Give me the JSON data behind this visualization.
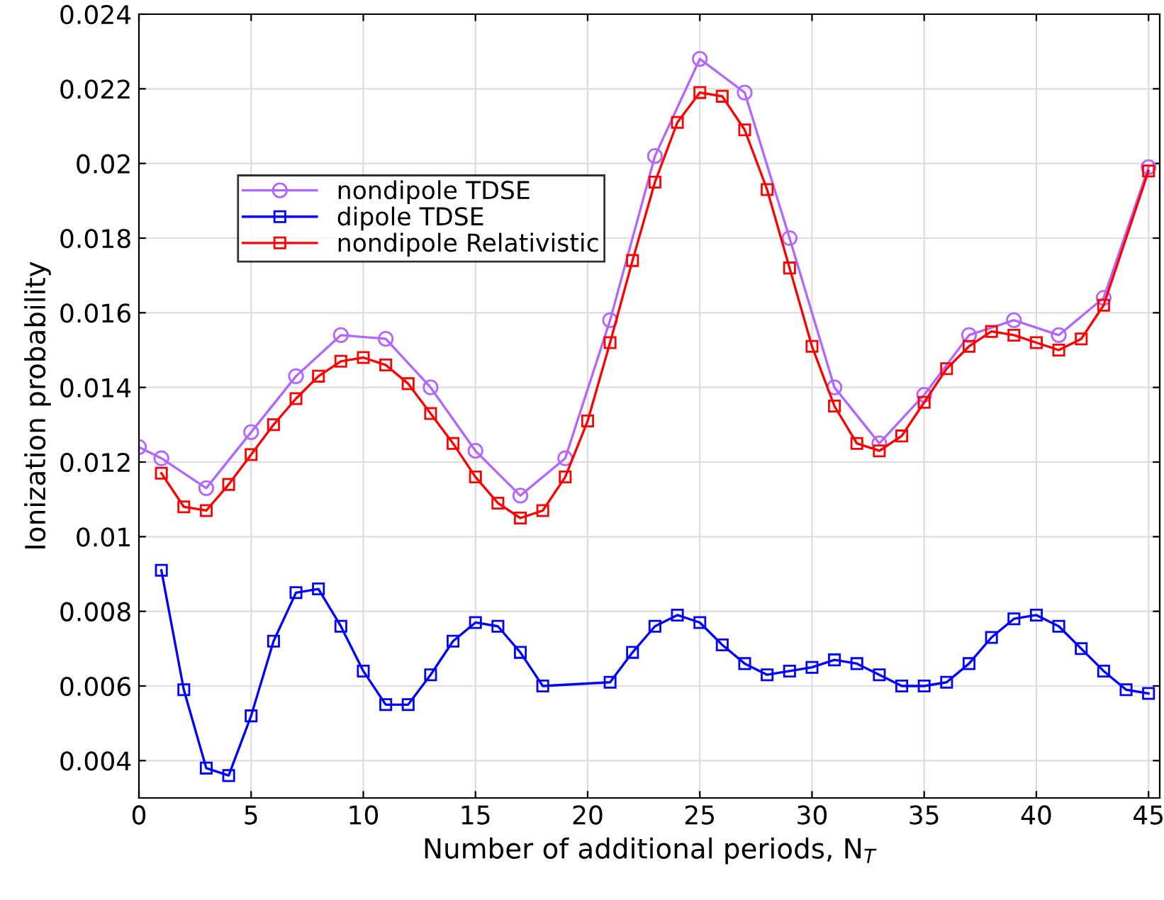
{
  "chart_data": {
    "type": "line",
    "xlabel": "Number of additional periods, N$_{T}$",
    "ylabel": "Ionization probability",
    "xlim": [
      0,
      45.5
    ],
    "ylim": [
      0.003,
      0.024
    ],
    "xticks": [
      0,
      5,
      10,
      15,
      20,
      25,
      30,
      35,
      40,
      45
    ],
    "yticks": [
      0.004,
      0.006,
      0.008,
      0.01,
      0.012,
      0.014,
      0.016,
      0.018,
      0.02,
      0.022,
      0.024
    ],
    "grid": true,
    "legend": "top left",
    "line_style": "solid",
    "series": [
      {
        "name": "nondipole TDSE",
        "color": "#b366ff",
        "marker": "circle",
        "x": [
          0,
          1,
          3,
          5,
          7,
          9,
          11,
          13,
          15,
          17,
          19,
          21,
          23,
          25,
          27,
          29,
          31,
          33,
          35,
          37,
          39,
          41,
          43,
          45
        ],
        "values": [
          0.0124,
          0.0121,
          0.0113,
          0.0128,
          0.0143,
          0.0154,
          0.0153,
          0.014,
          0.0123,
          0.0111,
          0.0121,
          0.0158,
          0.0202,
          0.0228,
          0.0219,
          0.018,
          0.014,
          0.0125,
          0.0138,
          0.0154,
          0.0158,
          0.0154,
          0.0164,
          0.0199
        ]
      },
      {
        "name": "dipole TDSE",
        "color": "#0000ff",
        "marker": "square",
        "x": [
          1,
          2,
          3,
          4,
          5,
          6,
          7,
          8,
          9,
          10,
          11,
          12,
          13,
          14,
          15,
          16,
          17,
          18,
          21,
          22,
          23,
          24,
          25,
          26,
          27,
          28,
          29,
          30,
          31,
          32,
          33,
          34,
          35,
          36,
          37,
          38,
          39,
          40,
          41,
          42,
          43,
          44,
          45
        ],
        "values": [
          0.0091,
          0.0059,
          0.0038,
          0.0036,
          0.0052,
          0.0072,
          0.0085,
          0.0086,
          0.0076,
          0.0064,
          0.0055,
          0.0055,
          0.0063,
          0.0072,
          0.0077,
          0.0076,
          0.0069,
          0.006,
          0.0061,
          0.0069,
          0.0076,
          0.0079,
          0.0077,
          0.0071,
          0.0066,
          0.0063,
          0.0064,
          0.0065,
          0.0067,
          0.0066,
          0.0063,
          0.006,
          0.006,
          0.0061,
          0.0066,
          0.0073,
          0.0078,
          0.0079,
          0.0076,
          0.007,
          0.0064,
          0.0059,
          0.0058
        ]
      },
      {
        "name": "nondipole Relativistic",
        "color": "#ff0000",
        "marker": "square",
        "x": [
          1,
          2,
          3,
          4,
          5,
          6,
          7,
          8,
          9,
          10,
          11,
          12,
          13,
          14,
          15,
          16,
          17,
          18,
          19,
          20,
          21,
          22,
          23,
          24,
          25,
          26,
          27,
          28,
          29,
          30,
          31,
          32,
          33,
          34,
          35,
          36,
          37,
          38,
          39,
          40,
          41,
          42,
          43,
          45
        ],
        "values": [
          0.0117,
          0.0108,
          0.0107,
          0.0114,
          0.0122,
          0.013,
          0.0137,
          0.0143,
          0.0147,
          0.0148,
          0.0146,
          0.0141,
          0.0133,
          0.0125,
          0.0116,
          0.0109,
          0.0105,
          0.0107,
          0.0116,
          0.0131,
          0.0152,
          0.0174,
          0.0195,
          0.0211,
          0.0219,
          0.0218,
          0.0209,
          0.0193,
          0.0172,
          0.0151,
          0.0135,
          0.0125,
          0.0123,
          0.0127,
          0.0136,
          0.0145,
          0.0151,
          0.0155,
          0.0154,
          0.0152,
          0.015,
          0.0153,
          0.0162,
          0.0198
        ]
      }
    ]
  }
}
